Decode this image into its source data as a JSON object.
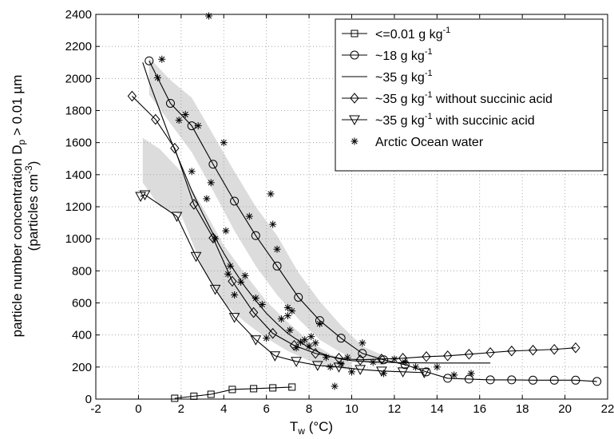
{
  "chart_data": {
    "type": "line",
    "xlim": [
      -2,
      22
    ],
    "ylim": [
      0,
      2400
    ],
    "xticks": [
      -2,
      0,
      2,
      4,
      6,
      8,
      10,
      12,
      14,
      16,
      18,
      20,
      22
    ],
    "yticks": [
      0,
      200,
      400,
      600,
      800,
      1000,
      1200,
      1400,
      1600,
      1800,
      2000,
      2200,
      2400
    ],
    "grid": true,
    "legend_position": "top-right",
    "xlabel": {
      "main": "T",
      "sub": "w",
      "rest": " (°C)"
    },
    "ylabel": {
      "line1": {
        "main": "particle number concentration D",
        "sub": "p",
        "rest": " > 0.01 µm"
      },
      "line2": {
        "main": "(particles cm",
        "sup": "-3",
        "rest": ")"
      }
    },
    "series": [
      {
        "name": {
          "main": "<=0.01 g kg",
          "sup": "-1",
          "rest": ""
        },
        "marker": "square",
        "x": [
          1.7,
          2.6,
          3.4,
          4.4,
          5.4,
          6.3,
          7.2
        ],
        "y": [
          5,
          18,
          30,
          60,
          65,
          70,
          75
        ]
      },
      {
        "name": {
          "main": "~18 g kg",
          "sup": "-1",
          "rest": ""
        },
        "marker": "circle",
        "x": [
          0.5,
          1.5,
          2.5,
          3.5,
          4.5,
          5.5,
          6.5,
          7.5,
          8.5,
          9.5,
          10.5,
          11.5,
          12.5,
          13.5,
          14.5,
          15.5,
          16.5,
          17.5,
          18.5,
          19.5,
          20.5,
          21.5
        ],
        "y": [
          2110,
          1845,
          1705,
          1465,
          1235,
          1020,
          830,
          635,
          490,
          380,
          285,
          245,
          215,
          170,
          130,
          125,
          120,
          120,
          118,
          118,
          118,
          110
        ]
      },
      {
        "name": {
          "main": "~35 g kg",
          "sup": "-1",
          "rest": ""
        },
        "marker": "none",
        "x": [
          0.2,
          0.5,
          1.0,
          1.5,
          2.0,
          2.5,
          3.0,
          3.5,
          4.0,
          4.5,
          5.0,
          5.5,
          6.0,
          6.5,
          7.0,
          7.5,
          8.0,
          8.5,
          9.0,
          9.5,
          10.0,
          10.5,
          11.0,
          11.5,
          12.0,
          13.0,
          14.0,
          15.0,
          16.5
        ],
        "y": [
          2100,
          1980,
          1800,
          1620,
          1460,
          1300,
          1160,
          1030,
          910,
          800,
          700,
          615,
          535,
          470,
          410,
          365,
          320,
          290,
          265,
          250,
          240,
          235,
          232,
          230,
          228,
          226,
          225,
          225,
          225
        ]
      },
      {
        "name": {
          "main": "~35 g kg",
          "sup": "-1",
          "rest": " without succinic acid"
        },
        "marker": "diamond",
        "x": [
          -0.3,
          0.8,
          1.7,
          2.6,
          3.5,
          4.4,
          5.4,
          6.3,
          7.3,
          8.3,
          9.4,
          10.4,
          11.4,
          12.4,
          13.5,
          14.5,
          15.5,
          16.5,
          17.5,
          18.5,
          19.5,
          20.5
        ],
        "y": [
          1890,
          1745,
          1565,
          1215,
          1005,
          735,
          540,
          410,
          335,
          285,
          255,
          245,
          250,
          255,
          265,
          270,
          280,
          290,
          300,
          305,
          310,
          320
        ]
      },
      {
        "name": {
          "main": "~35 g kg",
          "sup": "-1",
          "rest": " with succinic acid"
        },
        "marker": "triangle-down",
        "x": [
          0.1,
          0.3,
          1.8,
          2.7,
          3.6,
          4.5,
          5.5,
          6.4,
          7.4,
          8.4,
          9.4,
          10.4,
          11.4,
          12.4,
          13.4
        ],
        "y": [
          1265,
          1275,
          1140,
          890,
          685,
          510,
          370,
          270,
          235,
          210,
          200,
          185,
          175,
          170,
          165
        ]
      },
      {
        "name": {
          "main": "Arctic Ocean water",
          "sup": "",
          "rest": ""
        },
        "marker": "asterisk",
        "x": [
          0.9,
          1.1,
          1.9,
          2.2,
          2.5,
          2.8,
          3.2,
          3.3,
          3.4,
          3.6,
          4.0,
          4.1,
          4.2,
          4.3,
          4.5,
          4.8,
          5.0,
          5.2,
          5.5,
          5.8,
          6.0,
          6.2,
          6.3,
          6.5,
          6.7,
          7.0,
          7.0,
          7.1,
          7.2,
          7.4,
          7.6,
          7.8,
          8.0,
          8.1,
          8.3,
          8.5,
          8.8,
          9.0,
          9.2,
          9.5,
          9.8,
          10.0,
          10.5,
          11.0,
          11.5,
          12.0,
          12.5,
          13.0,
          14.0,
          14.8,
          15.6
        ],
        "y": [
          2005,
          2120,
          1740,
          1775,
          1420,
          1705,
          1250,
          2390,
          1350,
          1000,
          1600,
          1050,
          780,
          830,
          650,
          730,
          770,
          1140,
          630,
          590,
          380,
          1280,
          1090,
          935,
          500,
          520,
          570,
          430,
          550,
          320,
          355,
          370,
          330,
          390,
          350,
          470,
          260,
          200,
          80,
          220,
          260,
          170,
          350,
          230,
          160,
          250,
          230,
          200,
          200,
          150,
          160
        ]
      }
    ],
    "shaded_bands": [
      {
        "x": [
          0.5,
          1.5,
          2.5,
          3.5,
          4.5,
          5.5,
          6.5,
          7.5,
          8.5,
          9.5,
          10.5,
          11.5
        ],
        "lower": [
          1900,
          1720,
          1540,
          1300,
          1050,
          830,
          650,
          500,
          370,
          290,
          230,
          210
        ],
        "upper": [
          2130,
          1990,
          1880,
          1650,
          1420,
          1200,
          1020,
          790,
          610,
          460,
          330,
          270
        ]
      },
      {
        "x": [
          0.2,
          1.0,
          2.0,
          3.0,
          4.0,
          5.0,
          6.0,
          7.0,
          8.0,
          9.0,
          10.0
        ],
        "lower": [
          1350,
          1200,
          1150,
          820,
          600,
          480,
          380,
          300,
          240,
          200,
          180
        ],
        "upper": [
          1630,
          1560,
          1420,
          1200,
          960,
          780,
          610,
          480,
          360,
          280,
          230
        ]
      }
    ]
  }
}
